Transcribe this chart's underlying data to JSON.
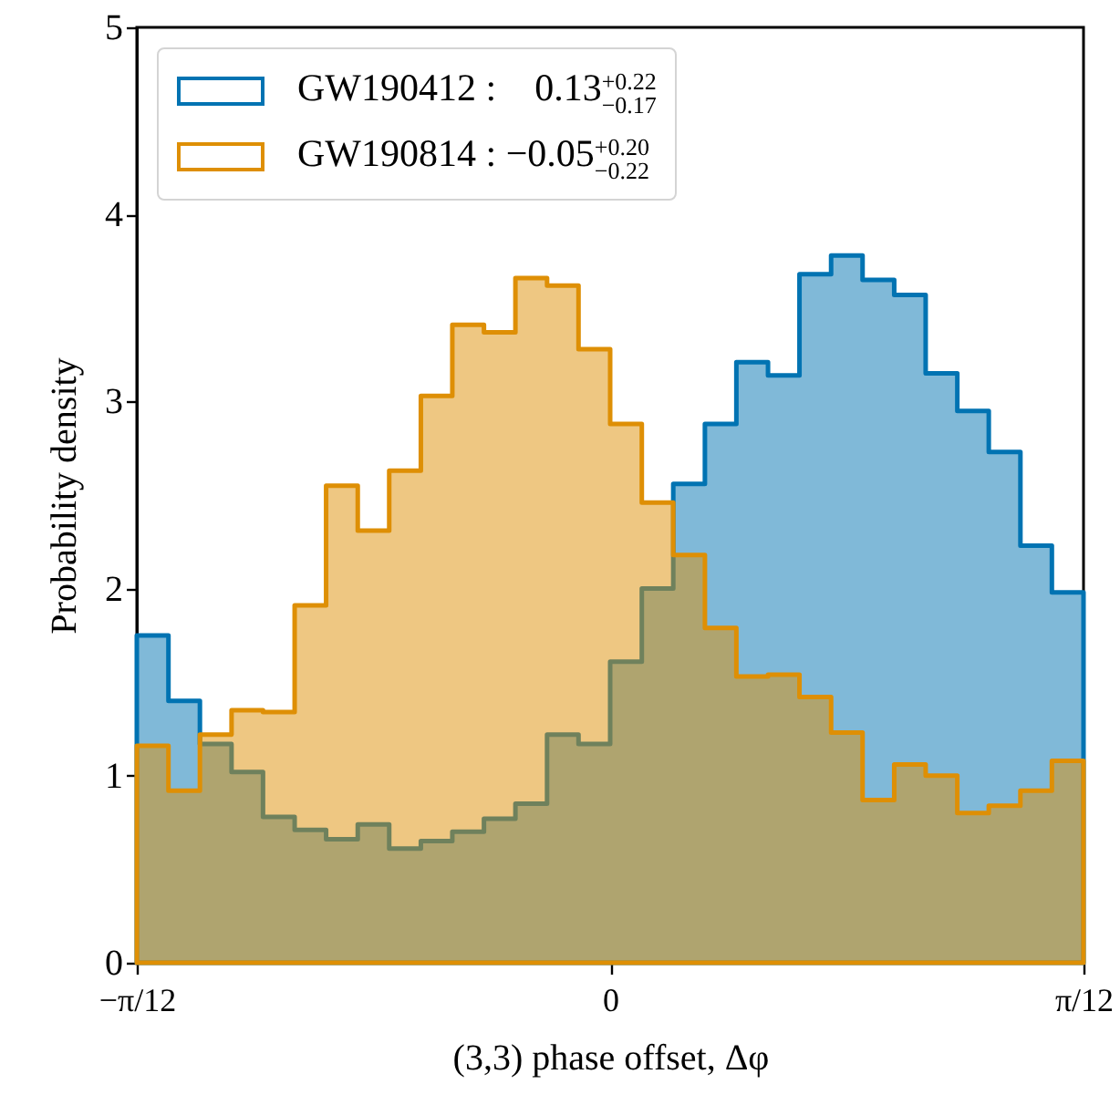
{
  "chart_data": {
    "type": "histogram",
    "xlabel": "(3,3) phase offset, Δφ",
    "ylabel": "Probability density",
    "bins": [
      -0.2618,
      -0.2443,
      -0.2269,
      -0.2094,
      -0.192,
      -0.1745,
      -0.1571,
      -0.1396,
      -0.1222,
      -0.1047,
      -0.0873,
      -0.0698,
      -0.0524,
      -0.0349,
      -0.0175,
      0,
      0.0175,
      0.0349,
      0.0524,
      0.0698,
      0.0873,
      0.1047,
      0.1222,
      0.1396,
      0.1571,
      0.1745,
      0.192,
      0.2094,
      0.2269,
      0.2443,
      0.2618
    ],
    "series": [
      {
        "name": "GW190412 :   0.13$^{+0.22}$$_{−0.17}$",
        "color": "#0173b2",
        "values": [
          1.75,
          1.4,
          1.17,
          1.02,
          0.78,
          0.71,
          0.66,
          0.74,
          0.61,
          0.65,
          0.7,
          0.77,
          0.85,
          1.22,
          1.17,
          1.61,
          2.0,
          2.56,
          2.88,
          3.21,
          3.14,
          3.68,
          3.78,
          3.65,
          3.57,
          3.15,
          2.95,
          2.73,
          2.23,
          1.98
        ]
      },
      {
        "name": "GW190814 : −0.05$^{+0.20}$$_{−0.22}$",
        "color": "#de8f05",
        "values": [
          1.16,
          0.92,
          1.22,
          1.35,
          1.34,
          1.91,
          2.55,
          2.31,
          2.63,
          3.03,
          3.41,
          3.37,
          3.66,
          3.62,
          3.28,
          2.88,
          2.46,
          2.18,
          1.79,
          1.53,
          1.54,
          1.42,
          1.23,
          0.87,
          1.06,
          1.0,
          0.8,
          0.84,
          0.92,
          1.08
        ]
      }
    ],
    "xlim": [
      -0.2618,
      0.2618
    ],
    "xticks": [
      {
        "value": -0.2618,
        "label": "−π/12"
      },
      0,
      {
        "value": 0.2618,
        "label": "π/12"
      }
    ],
    "ylim": [
      0,
      5
    ],
    "yticks": [
      0,
      1,
      2,
      3,
      4,
      5
    ],
    "legend": "top left"
  }
}
